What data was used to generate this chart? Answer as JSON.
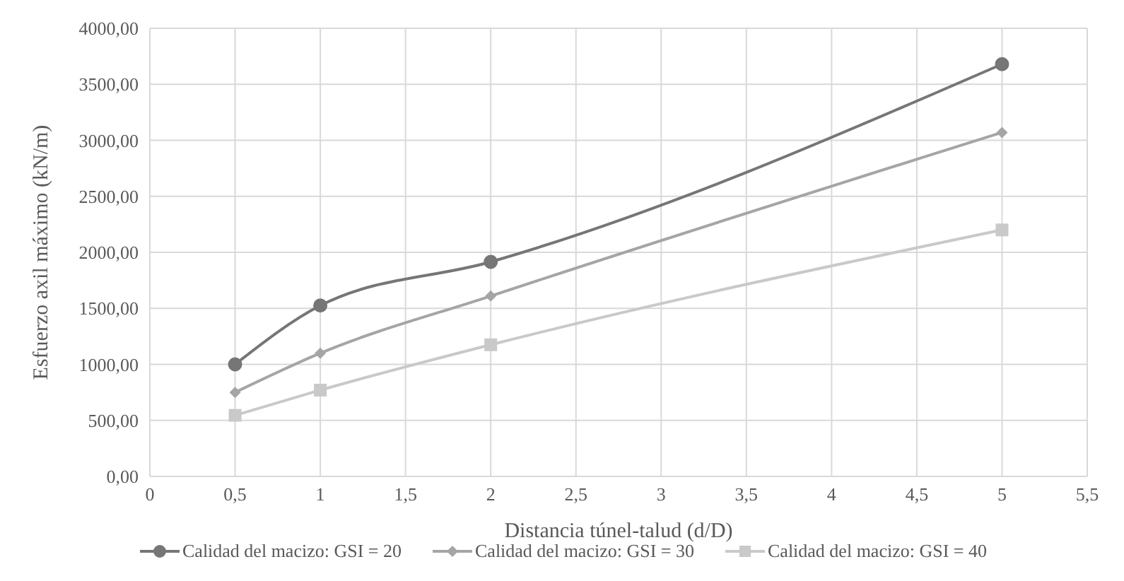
{
  "chart_data": {
    "type": "line",
    "xlabel": "Distancia túnel-talud (d/D)",
    "ylabel": "Esfuerzo axil máximo (kN/m)",
    "x": [
      0.5,
      1,
      2,
      5
    ],
    "series": [
      {
        "name": "Calidad del macizo: GSI = 20",
        "color": "#767676",
        "marker": "circle",
        "values": [
          1000,
          1525,
          1915,
          3680
        ]
      },
      {
        "name": "Calidad del macizo: GSI = 30",
        "color": "#a5a5a5",
        "marker": "diamond",
        "values": [
          750,
          1100,
          1610,
          3070
        ]
      },
      {
        "name": "Calidad del macizo: GSI = 40",
        "color": "#c9c9c9",
        "marker": "square",
        "values": [
          545,
          770,
          1175,
          2200
        ]
      }
    ],
    "xlim": [
      0,
      5.5
    ],
    "xticks": [
      0,
      {
        "value": 0.5,
        "label": "0,5"
      },
      1,
      {
        "value": 1.5,
        "label": "1,5"
      },
      2,
      {
        "value": 2.5,
        "label": "2,5"
      },
      3,
      {
        "value": 3.5,
        "label": "3,5"
      },
      4,
      {
        "value": 4.5,
        "label": "4,5"
      },
      5,
      {
        "value": 5.5,
        "label": "5,5"
      }
    ],
    "ylim": [
      0,
      4000
    ],
    "yticks": [
      {
        "value": 0,
        "label": "0,00"
      },
      {
        "value": 500,
        "label": "500,00"
      },
      {
        "value": 1000,
        "label": "1000,00"
      },
      {
        "value": 1500,
        "label": "1500,00"
      },
      {
        "value": 2000,
        "label": "2000,00"
      },
      {
        "value": 2500,
        "label": "2500,00"
      },
      {
        "value": 3000,
        "label": "3000,00"
      },
      {
        "value": 3500,
        "label": "3500,00"
      },
      {
        "value": 4000,
        "label": "4000,00"
      }
    ],
    "grid": true,
    "legend": "bottom",
    "line_style": "solid"
  }
}
